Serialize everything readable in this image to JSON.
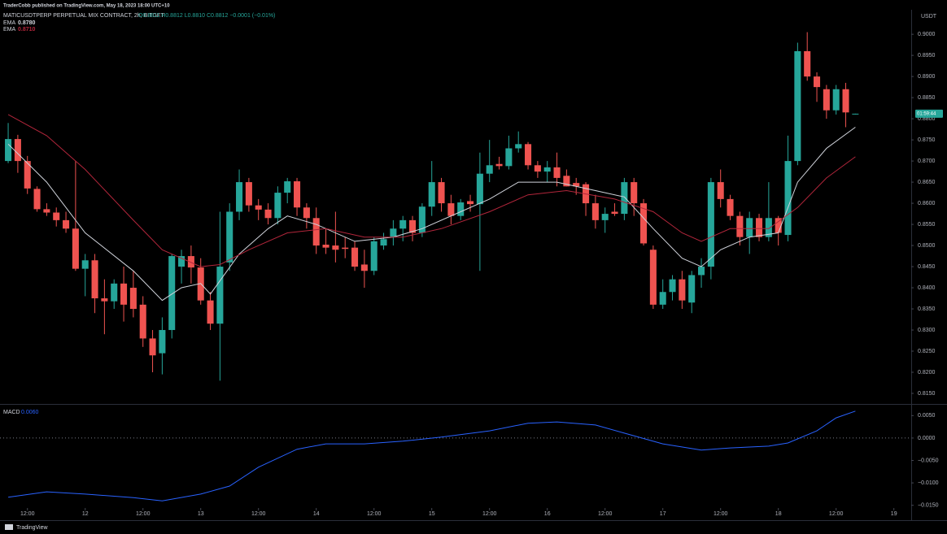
{
  "header": {
    "publisher": "TraderCobb published on TradingView.com, May 18, 2023 18:00 UTC+10",
    "brand": "TradingView"
  },
  "chart_data": [
    {
      "type": "candlestick",
      "title": "MATICUSDTPERP PERPETUAL MIX CONTRACT, 2h, BITGET",
      "ohlc_header": "O0.8811 H0.8812 L0.8810 C0.8812 −0.0001 (−0.01%)",
      "currency": "USDT",
      "countdown": "01:59:44",
      "up_color": "#26a69a",
      "down_color": "#ef5350",
      "xlim": [
        -0.85,
        93.8
      ],
      "xticks": [
        {
          "value": 2,
          "label": "12:00"
        },
        {
          "value": 8,
          "label": "12"
        },
        {
          "value": 14,
          "label": "12:00"
        },
        {
          "value": 20,
          "label": "13"
        },
        {
          "value": 26,
          "label": "12:00"
        },
        {
          "value": 32,
          "label": "14"
        },
        {
          "value": 38,
          "label": "12:00"
        },
        {
          "value": 44,
          "label": "15"
        },
        {
          "value": 50,
          "label": "12:00"
        },
        {
          "value": 56,
          "label": "16"
        },
        {
          "value": 62,
          "label": "12:00"
        },
        {
          "value": 68,
          "label": "17"
        },
        {
          "value": 74,
          "label": "12:00"
        },
        {
          "value": 80,
          "label": "18"
        },
        {
          "value": 86,
          "label": "12:00"
        },
        {
          "value": 92,
          "label": "19"
        }
      ],
      "ylim": [
        0.8125,
        0.9058
      ],
      "yticks": [
        {
          "value": 0.9,
          "label": "0.9000"
        },
        {
          "value": 0.895,
          "label": "0.8950"
        },
        {
          "value": 0.89,
          "label": "0.8900"
        },
        {
          "value": 0.885,
          "label": "0.8850"
        },
        {
          "value": 0.88,
          "label": "0.8800"
        },
        {
          "value": 0.875,
          "label": "0.8750"
        },
        {
          "value": 0.87,
          "label": "0.8700"
        },
        {
          "value": 0.865,
          "label": "0.8650"
        },
        {
          "value": 0.86,
          "label": "0.8600"
        },
        {
          "value": 0.855,
          "label": "0.8550"
        },
        {
          "value": 0.85,
          "label": "0.8500"
        },
        {
          "value": 0.845,
          "label": "0.8450"
        },
        {
          "value": 0.84,
          "label": "0.8400"
        },
        {
          "value": 0.835,
          "label": "0.8350"
        },
        {
          "value": 0.83,
          "label": "0.8300"
        },
        {
          "value": 0.825,
          "label": "0.8250"
        },
        {
          "value": 0.82,
          "label": "0.8200"
        },
        {
          "value": 0.815,
          "label": "0.8150"
        }
      ],
      "x": [
        0,
        1,
        2,
        3,
        4,
        5,
        6,
        7,
        8,
        9,
        10,
        11,
        12,
        13,
        14,
        15,
        16,
        17,
        18,
        19,
        20,
        21,
        22,
        23,
        24,
        25,
        26,
        27,
        28,
        29,
        30,
        31,
        32,
        33,
        34,
        35,
        36,
        37,
        38,
        39,
        40,
        41,
        42,
        43,
        44,
        45,
        46,
        47,
        48,
        49,
        50,
        51,
        52,
        53,
        54,
        55,
        56,
        57,
        58,
        59,
        60,
        61,
        62,
        63,
        64,
        65,
        66,
        67,
        68,
        69,
        70,
        71,
        72,
        73,
        74,
        75,
        76,
        77,
        78,
        79,
        80,
        81,
        82,
        83,
        84,
        85,
        86,
        87,
        88
      ],
      "open": [
        0.87,
        0.8752,
        0.87,
        0.8634,
        0.8586,
        0.8578,
        0.856,
        0.854,
        0.8445,
        0.8465,
        0.8375,
        0.8368,
        0.841,
        0.84,
        0.836,
        0.828,
        0.8245,
        0.83,
        0.845,
        0.8475,
        0.8448,
        0.837,
        0.8315,
        0.846,
        0.858,
        0.865,
        0.8595,
        0.8585,
        0.8565,
        0.8625,
        0.8652,
        0.859,
        0.8565,
        0.8502,
        0.85,
        0.8495,
        0.8495,
        0.8455,
        0.844,
        0.85,
        0.852,
        0.854,
        0.856,
        0.853,
        0.8592,
        0.865,
        0.86,
        0.857,
        0.8605,
        0.8598,
        0.867,
        0.8693,
        0.8688,
        0.873,
        0.874,
        0.869,
        0.8675,
        0.8685,
        0.8665,
        0.8648,
        0.8645,
        0.86,
        0.856,
        0.858,
        0.8575,
        0.865,
        0.86,
        0.849,
        0.836,
        0.839,
        0.842,
        0.8365,
        0.843,
        0.845,
        0.865,
        0.861,
        0.857,
        0.852,
        0.8565,
        0.852,
        0.8565,
        0.8525,
        0.87,
        0.896,
        0.89,
        0.887,
        0.882,
        0.887,
        0.8811
      ],
      "high": [
        0.879,
        0.8762,
        0.8712,
        0.864,
        0.86,
        0.859,
        0.858,
        0.87,
        0.848,
        0.848,
        0.842,
        0.842,
        0.845,
        0.844,
        0.838,
        0.83,
        0.833,
        0.848,
        0.849,
        0.85,
        0.847,
        0.839,
        0.858,
        0.86,
        0.868,
        0.866,
        0.861,
        0.86,
        0.864,
        0.866,
        0.866,
        0.86,
        0.859,
        0.854,
        0.858,
        0.852,
        0.851,
        0.849,
        0.852,
        0.853,
        0.856,
        0.857,
        0.857,
        0.86,
        0.87,
        0.866,
        0.862,
        0.861,
        0.862,
        0.872,
        0.875,
        0.871,
        0.876,
        0.877,
        0.8745,
        0.87,
        0.87,
        0.872,
        0.868,
        0.866,
        0.865,
        0.862,
        0.859,
        0.86,
        0.866,
        0.866,
        0.861,
        0.85,
        0.842,
        0.843,
        0.844,
        0.844,
        0.847,
        0.866,
        0.868,
        0.862,
        0.858,
        0.858,
        0.8575,
        0.865,
        0.857,
        0.876,
        0.898,
        0.9005,
        0.891,
        0.888,
        0.888,
        0.8885,
        0.8812
      ],
      "low": [
        0.8695,
        0.8672,
        0.8622,
        0.858,
        0.857,
        0.8545,
        0.853,
        0.844,
        0.838,
        0.834,
        0.829,
        0.835,
        0.832,
        0.833,
        0.826,
        0.82,
        0.8195,
        0.828,
        0.841,
        0.841,
        0.836,
        0.83,
        0.818,
        0.844,
        0.856,
        0.858,
        0.856,
        0.855,
        0.855,
        0.86,
        0.857,
        0.854,
        0.848,
        0.848,
        0.846,
        0.847,
        0.844,
        0.84,
        0.843,
        0.849,
        0.85,
        0.851,
        0.851,
        0.852,
        0.857,
        0.858,
        0.855,
        0.856,
        0.858,
        0.844,
        0.865,
        0.868,
        0.868,
        0.872,
        0.868,
        0.866,
        0.865,
        0.864,
        0.864,
        0.862,
        0.857,
        0.854,
        0.853,
        0.857,
        0.856,
        0.857,
        0.85,
        0.835,
        0.835,
        0.837,
        0.835,
        0.834,
        0.84,
        0.842,
        0.859,
        0.856,
        0.85,
        0.848,
        0.851,
        0.851,
        0.85,
        0.851,
        0.869,
        0.889,
        0.884,
        0.88,
        0.881,
        0.878,
        0.881
      ],
      "close": [
        0.8752,
        0.87,
        0.8635,
        0.8586,
        0.8578,
        0.856,
        0.854,
        0.8445,
        0.8465,
        0.8375,
        0.8368,
        0.841,
        0.836,
        0.835,
        0.828,
        0.824,
        0.83,
        0.8475,
        0.8475,
        0.8448,
        0.837,
        0.8315,
        0.845,
        0.858,
        0.865,
        0.8595,
        0.8585,
        0.8565,
        0.8625,
        0.8652,
        0.859,
        0.8565,
        0.85,
        0.8495,
        0.849,
        0.8492,
        0.845,
        0.844,
        0.851,
        0.8515,
        0.854,
        0.856,
        0.853,
        0.8592,
        0.865,
        0.86,
        0.857,
        0.8602,
        0.8598,
        0.867,
        0.869,
        0.8688,
        0.873,
        0.874,
        0.869,
        0.8675,
        0.8685,
        0.866,
        0.864,
        0.864,
        0.86,
        0.856,
        0.8575,
        0.8575,
        0.865,
        0.86,
        0.8505,
        0.836,
        0.839,
        0.842,
        0.837,
        0.843,
        0.845,
        0.865,
        0.861,
        0.857,
        0.852,
        0.8565,
        0.852,
        0.8565,
        0.853,
        0.87,
        0.896,
        0.89,
        0.8875,
        0.882,
        0.887,
        0.8815,
        0.8812
      ],
      "lines": [
        {
          "name": "EMA",
          "last_label": "0.8780",
          "color": "#d1d4dc",
          "x": [
            0,
            4,
            8,
            13,
            16,
            18,
            20,
            21,
            24,
            27,
            29,
            32,
            36,
            40,
            43,
            47,
            50,
            53,
            57,
            61,
            64,
            67,
            70,
            72,
            74,
            77,
            80,
            82,
            85,
            88
          ],
          "values": [
            0.874,
            0.865,
            0.853,
            0.844,
            0.837,
            0.84,
            0.841,
            0.8385,
            0.848,
            0.854,
            0.857,
            0.855,
            0.851,
            0.852,
            0.854,
            0.858,
            0.861,
            0.865,
            0.865,
            0.863,
            0.8615,
            0.854,
            0.847,
            0.845,
            0.849,
            0.852,
            0.853,
            0.865,
            0.873,
            0.878
          ]
        },
        {
          "name": "EMA",
          "last_label": "0.8710",
          "color": "#b2263b",
          "x": [
            0,
            4,
            8,
            13,
            16,
            20,
            22,
            25,
            29,
            33,
            37,
            41,
            45,
            50,
            54,
            58,
            63,
            67,
            70,
            72,
            75,
            79,
            82,
            85,
            88
          ],
          "values": [
            0.881,
            0.876,
            0.868,
            0.856,
            0.849,
            0.845,
            0.8455,
            0.849,
            0.853,
            0.854,
            0.852,
            0.852,
            0.854,
            0.858,
            0.862,
            0.863,
            0.861,
            0.858,
            0.853,
            0.851,
            0.854,
            0.854,
            0.859,
            0.866,
            0.871
          ]
        }
      ]
    },
    {
      "type": "line",
      "title": "MACD",
      "last_label": "0.0060",
      "xlim": [
        -0.85,
        93.8
      ],
      "ylim": [
        -0.0156,
        0.0076
      ],
      "yticks": [
        {
          "value": 0.005,
          "label": "0.0050"
        },
        {
          "value": 0,
          "label": "0.0000"
        },
        {
          "value": -0.005,
          "label": "−0.0050"
        },
        {
          "value": -0.01,
          "label": "−0.0100"
        },
        {
          "value": -0.015,
          "label": "−0.0150"
        }
      ],
      "zero_line": 0,
      "series": [
        {
          "name": "MACD",
          "color": "#2962ff",
          "x": [
            0,
            4,
            8,
            13,
            16,
            20,
            23,
            26,
            30,
            33,
            37,
            41,
            45,
            50,
            54,
            57,
            61,
            64,
            68,
            72,
            75,
            79,
            81,
            84,
            86,
            88
          ],
          "values": [
            -0.0132,
            -0.012,
            -0.0125,
            -0.0133,
            -0.014,
            -0.0125,
            -0.0107,
            -0.0065,
            -0.0025,
            -0.0013,
            -0.0013,
            -0.0007,
            0.0002,
            0.0016,
            0.0033,
            0.0036,
            0.0029,
            0.0011,
            -0.0013,
            -0.0027,
            -0.0022,
            -0.0018,
            -0.0011,
            0.0016,
            0.0045,
            0.006
          ]
        }
      ]
    }
  ]
}
